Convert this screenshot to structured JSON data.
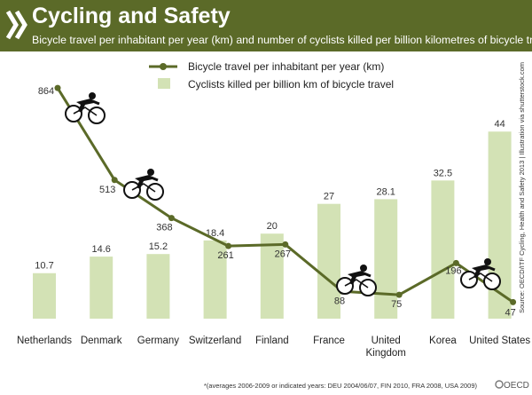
{
  "title": "Cycling and Safety",
  "subtitle": "Bicycle travel per inhabitant per year (km) and number of cyclists killed per billion kilometres of bicycle travel*",
  "source": "Source: OECD/ITF Cycling, Health and Safety 2013 | Illustration via shutterstock.com",
  "footnote": "*(averages 2006-2009 or indicated years: DEU 2004/06/07, FIN 2010, FRA 2008, USA 2009)",
  "brand": "OECD",
  "colors": {
    "header": "#5b6a28",
    "line": "#5b6a28",
    "bar": "#d3e2b5"
  },
  "chart_data": {
    "type": "bar",
    "categories": [
      "Netherlands",
      "Denmark",
      "Germany",
      "Switzerland",
      "Finland",
      "France",
      "United Kingdom",
      "Korea",
      "United States"
    ],
    "category_lines": [
      [
        "Netherlands"
      ],
      [
        "Denmark"
      ],
      [
        "Germany"
      ],
      [
        "Switzerland"
      ],
      [
        "Finland"
      ],
      [
        "France"
      ],
      [
        "United",
        "Kingdom"
      ],
      [
        "Korea"
      ],
      [
        "United States"
      ]
    ],
    "series": [
      {
        "name": "Cyclists killed per billion km of bicycle travel",
        "type": "bar",
        "values": [
          10.7,
          14.6,
          15.2,
          18.4,
          20,
          27,
          28.1,
          32.5,
          44
        ]
      },
      {
        "name": "Bicycle travel per inhabitant per year (km)",
        "type": "line",
        "values": [
          864,
          513,
          368,
          261,
          267,
          88,
          75,
          196,
          47
        ]
      }
    ],
    "bar_ylim": [
      0,
      50
    ],
    "line_ylim": [
      -50,
      1000
    ],
    "legend_position": "top-center",
    "grid": false,
    "cyclist_icons": [
      "Netherlands",
      "Denmark",
      "France",
      "United States"
    ]
  }
}
